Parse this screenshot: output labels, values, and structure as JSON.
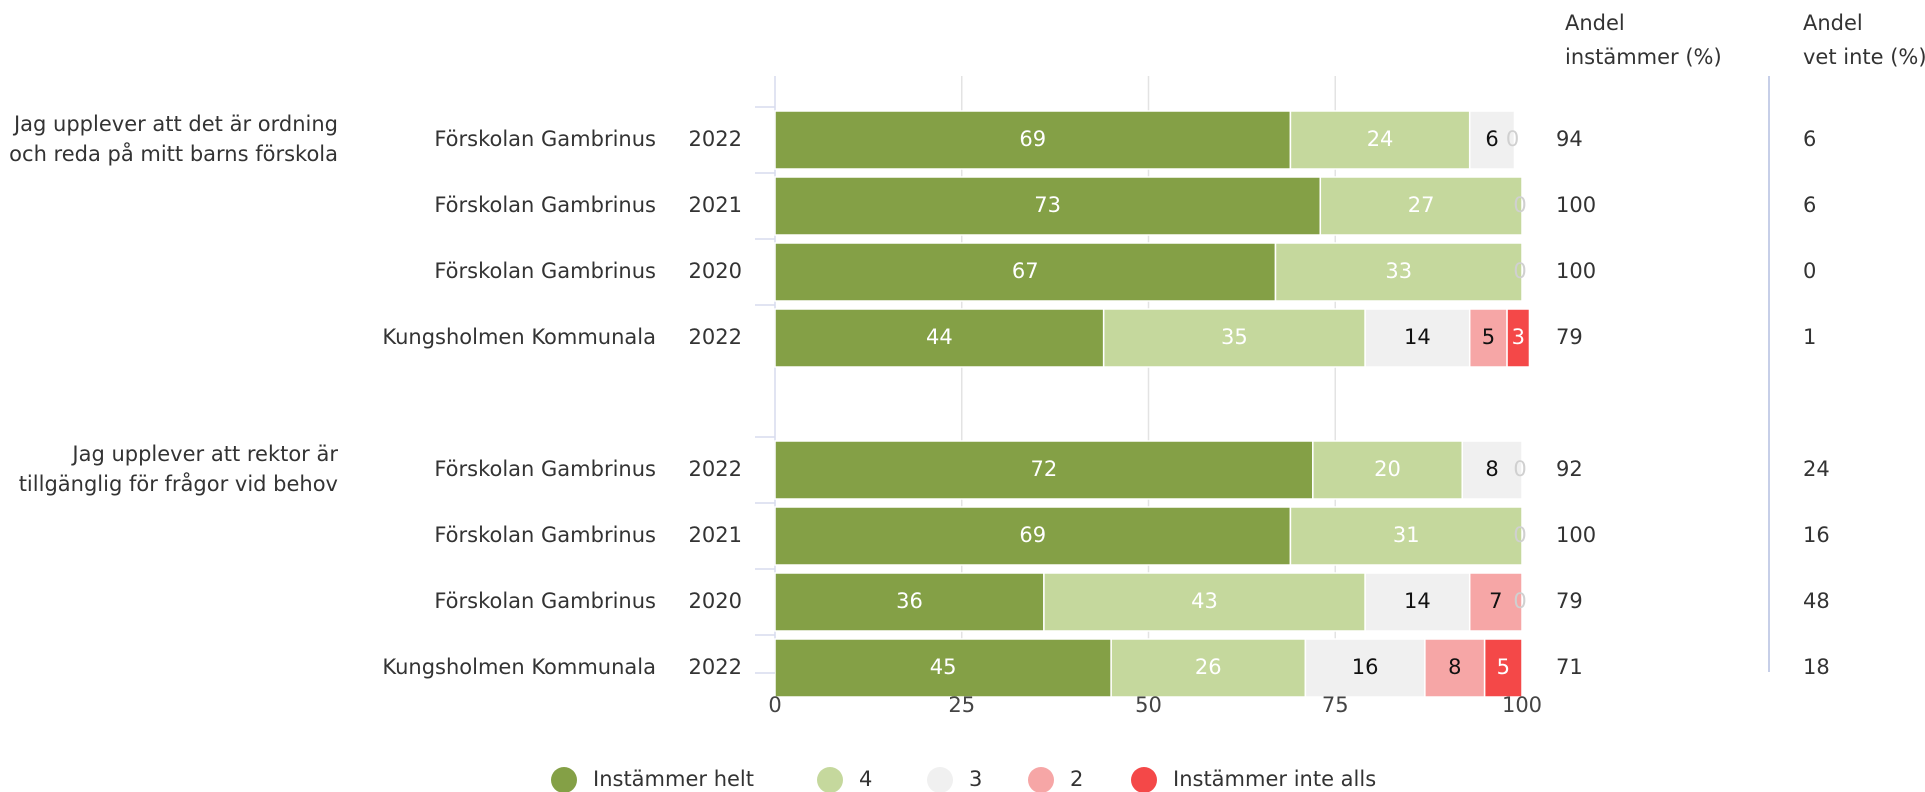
{
  "chart_data": {
    "type": "bar",
    "orientation": "horizontal",
    "stacked": true,
    "xlim": [
      0,
      100
    ],
    "x_ticks": [
      "0",
      "25",
      "50",
      "75",
      "100"
    ],
    "grid": true,
    "legend_position": "bottom",
    "column_headers": {
      "agree": [
        "Andel",
        "instämmer (%)"
      ],
      "dont_know": [
        "Andel",
        "vet inte (%)"
      ]
    },
    "series": [
      {
        "key": "s5",
        "name": "Instämmer helt",
        "color": "#84a046",
        "label_color": "#ffffff"
      },
      {
        "key": "s4",
        "name": "4",
        "color": "#c5d89d",
        "label_color": "#ffffff"
      },
      {
        "key": "s3",
        "name": "3",
        "color": "#f0f0f0",
        "label_color": "#111111"
      },
      {
        "key": "s2",
        "name": "2",
        "color": "#f6a6a6",
        "label_color": "#111111"
      },
      {
        "key": "s1",
        "name": "Instämmer inte alls",
        "color": "#f44848",
        "label_color": "#ffffff"
      }
    ],
    "groups": [
      {
        "question": [
          "Jag upplever att det är ordning",
          "och reda på mitt barns förskola"
        ],
        "rows": [
          {
            "unit": "Förskolan Gambrinus",
            "year": "2022",
            "values": [
              69,
              24,
              6,
              0,
              0
            ],
            "labels": [
              "69",
              "24",
              "6",
              "0",
              ""
            ],
            "agree": "94",
            "dont_know": "6"
          },
          {
            "unit": "Förskolan Gambrinus",
            "year": "2021",
            "values": [
              73,
              27,
              0,
              0,
              0
            ],
            "labels": [
              "73",
              "27",
              "0",
              "",
              ""
            ],
            "agree": "100",
            "dont_know": "6"
          },
          {
            "unit": "Förskolan Gambrinus",
            "year": "2020",
            "values": [
              67,
              33,
              0,
              0,
              0
            ],
            "labels": [
              "67",
              "33",
              "0",
              "",
              ""
            ],
            "agree": "100",
            "dont_know": "0"
          },
          {
            "unit": "Kungsholmen Kommunala",
            "year": "2022",
            "values": [
              44,
              35,
              14,
              5,
              3
            ],
            "labels": [
              "44",
              "35",
              "14",
              "5",
              "3"
            ],
            "agree": "79",
            "dont_know": "1"
          }
        ]
      },
      {
        "question": [
          "Jag upplever att rektor är",
          "tillgänglig för frågor vid behov"
        ],
        "rows": [
          {
            "unit": "Förskolan Gambrinus",
            "year": "2022",
            "values": [
              72,
              20,
              8,
              0,
              0
            ],
            "labels": [
              "72",
              "20",
              "8",
              "0",
              ""
            ],
            "agree": "92",
            "dont_know": "24"
          },
          {
            "unit": "Förskolan Gambrinus",
            "year": "2021",
            "values": [
              69,
              31,
              0,
              0,
              0
            ],
            "labels": [
              "69",
              "31",
              "0",
              "",
              ""
            ],
            "agree": "100",
            "dont_know": "16"
          },
          {
            "unit": "Förskolan Gambrinus",
            "year": "2020",
            "values": [
              36,
              43,
              14,
              7,
              0
            ],
            "labels": [
              "36",
              "43",
              "14",
              "7",
              "0"
            ],
            "agree": "79",
            "dont_know": "48"
          },
          {
            "unit": "Kungsholmen Kommunala",
            "year": "2022",
            "values": [
              45,
              26,
              16,
              8,
              5
            ],
            "labels": [
              "45",
              "26",
              "16",
              "8",
              "5"
            ],
            "agree": "71",
            "dont_know": "18"
          }
        ]
      }
    ]
  }
}
